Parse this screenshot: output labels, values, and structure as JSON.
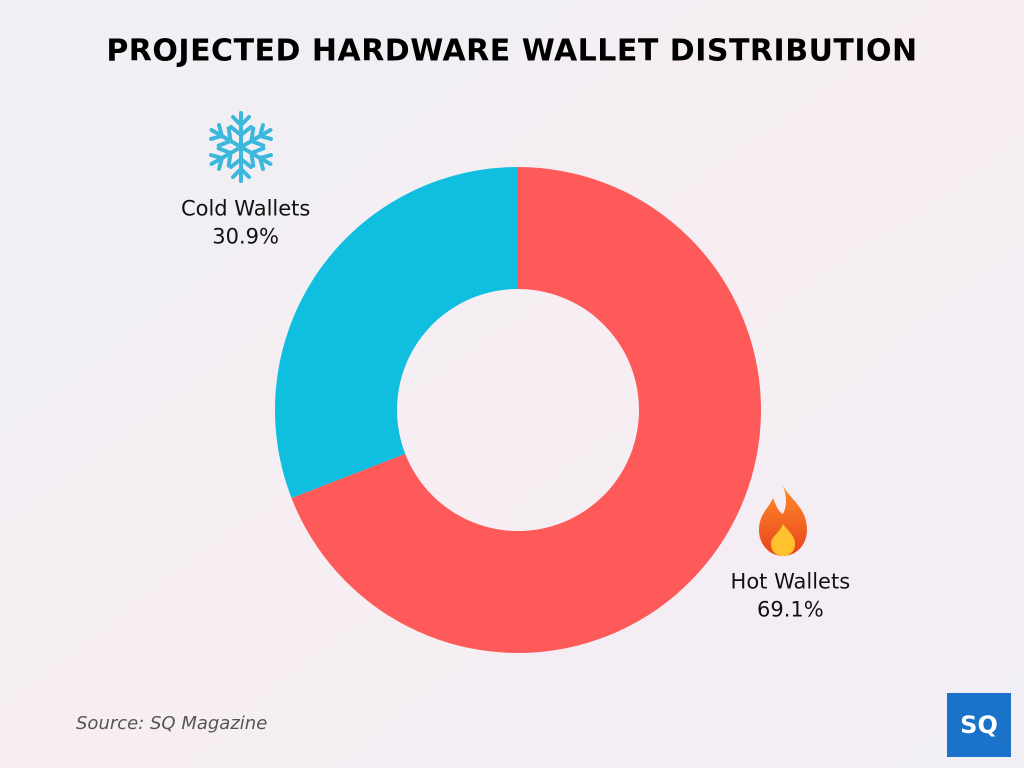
{
  "chart_data": {
    "type": "pie",
    "title": "PROJECTED HARDWARE WALLET DISTRIBUTION",
    "categories": [
      "Hot Wallets",
      "Cold Wallets"
    ],
    "values": [
      69.1,
      30.9
    ],
    "value_labels": [
      "69.1%",
      "30.9%"
    ],
    "colors": [
      "#fe5a59",
      "#10bfe0"
    ],
    "source": "Source: SQ Magazine"
  },
  "logo": "SQ"
}
